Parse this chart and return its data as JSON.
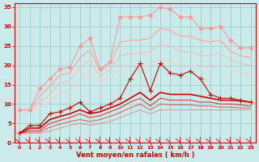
{
  "background_color": "#cbeaea",
  "grid_color": "#a0cccc",
  "xlabel": "Vent moyen/en rafales ( km/h )",
  "xlabel_color": "#cc0000",
  "tick_color": "#cc0000",
  "xlim": [
    -0.5,
    23.5
  ],
  "ylim": [
    0,
    36
  ],
  "xticks": [
    0,
    1,
    2,
    3,
    4,
    5,
    6,
    7,
    8,
    9,
    10,
    11,
    12,
    13,
    14,
    15,
    16,
    17,
    18,
    19,
    20,
    21,
    22,
    23
  ],
  "yticks": [
    0,
    5,
    10,
    15,
    20,
    25,
    30,
    35
  ],
  "lines": [
    {
      "x": [
        0,
        1,
        2,
        3,
        4,
        5,
        6,
        7,
        8,
        9,
        10,
        11,
        12,
        13,
        14,
        15,
        16,
        17,
        18,
        19,
        20,
        21,
        22,
        23
      ],
      "y": [
        8.5,
        8.5,
        14.0,
        16.5,
        19.0,
        19.5,
        25.0,
        27.0,
        19.0,
        21.0,
        32.5,
        32.5,
        32.5,
        33.0,
        35.0,
        34.5,
        32.5,
        32.5,
        29.5,
        29.5,
        30.0,
        26.5,
        24.5,
        24.5
      ],
      "color": "#ff9999",
      "marker": "D",
      "linewidth": 0.8,
      "markersize": 2.5,
      "alpha": 1.0,
      "zorder": 5
    },
    {
      "x": [
        0,
        1,
        2,
        3,
        4,
        5,
        6,
        7,
        8,
        9,
        10,
        11,
        12,
        13,
        14,
        15,
        16,
        17,
        18,
        19,
        20,
        21,
        22,
        23
      ],
      "y": [
        8.5,
        8.5,
        12.0,
        14.5,
        17.5,
        18.0,
        22.0,
        24.0,
        18.5,
        20.5,
        26.0,
        26.5,
        26.5,
        27.0,
        29.5,
        29.0,
        27.5,
        27.5,
        26.5,
        26.0,
        26.5,
        23.5,
        22.5,
        22.0
      ],
      "color": "#ffaaaa",
      "marker": null,
      "linewidth": 1.0,
      "markersize": 0,
      "alpha": 1.0,
      "zorder": 4
    },
    {
      "x": [
        0,
        1,
        2,
        3,
        4,
        5,
        6,
        7,
        8,
        9,
        10,
        11,
        12,
        13,
        14,
        15,
        16,
        17,
        18,
        19,
        20,
        21,
        22,
        23
      ],
      "y": [
        8.5,
        8.5,
        10.5,
        12.5,
        15.5,
        16.0,
        19.5,
        21.5,
        17.0,
        19.0,
        22.5,
        23.0,
        23.0,
        23.5,
        25.5,
        25.0,
        23.5,
        23.5,
        22.5,
        22.5,
        23.0,
        21.5,
        20.5,
        20.0
      ],
      "color": "#ffbbbb",
      "marker": null,
      "linewidth": 0.8,
      "markersize": 0,
      "alpha": 1.0,
      "zorder": 3
    },
    {
      "x": [
        0,
        1,
        2,
        3,
        4,
        5,
        6,
        7,
        8,
        9,
        10,
        11,
        12,
        13,
        14,
        15,
        16,
        17,
        18,
        19,
        20,
        21,
        22,
        23
      ],
      "y": [
        8.5,
        8.5,
        9.0,
        10.5,
        13.0,
        13.5,
        16.0,
        18.0,
        15.5,
        17.0,
        19.0,
        19.5,
        19.5,
        20.0,
        21.5,
        21.0,
        20.0,
        20.0,
        19.5,
        19.5,
        20.0,
        19.0,
        18.0,
        17.5
      ],
      "color": "#ffcccc",
      "marker": null,
      "linewidth": 0.8,
      "markersize": 0,
      "alpha": 1.0,
      "zorder": 2
    },
    {
      "x": [
        0,
        1,
        2,
        3,
        4,
        5,
        6,
        7,
        8,
        9,
        10,
        11,
        12,
        13,
        14,
        15,
        16,
        17,
        18,
        19,
        20,
        21,
        22,
        23
      ],
      "y": [
        2.5,
        4.5,
        4.5,
        7.5,
        8.0,
        9.0,
        10.5,
        8.0,
        9.0,
        10.0,
        11.5,
        16.5,
        20.5,
        13.5,
        20.5,
        18.0,
        17.5,
        18.5,
        16.5,
        12.5,
        11.5,
        11.5,
        11.0,
        10.5
      ],
      "color": "#cc0000",
      "marker": "+",
      "linewidth": 0.8,
      "markersize": 4,
      "alpha": 1.0,
      "zorder": 10
    },
    {
      "x": [
        0,
        1,
        2,
        3,
        4,
        5,
        6,
        7,
        8,
        9,
        10,
        11,
        12,
        13,
        14,
        15,
        16,
        17,
        18,
        19,
        20,
        21,
        22,
        23
      ],
      "y": [
        2.5,
        3.8,
        3.8,
        6.0,
        6.8,
        7.5,
        8.5,
        7.5,
        8.0,
        9.0,
        10.0,
        11.5,
        13.0,
        11.0,
        13.0,
        12.5,
        12.5,
        12.5,
        12.0,
        11.5,
        11.0,
        11.0,
        10.8,
        10.5
      ],
      "color": "#cc0000",
      "marker": null,
      "linewidth": 1.2,
      "markersize": 0,
      "alpha": 1.0,
      "zorder": 9
    },
    {
      "x": [
        0,
        1,
        2,
        3,
        4,
        5,
        6,
        7,
        8,
        9,
        10,
        11,
        12,
        13,
        14,
        15,
        16,
        17,
        18,
        19,
        20,
        21,
        22,
        23
      ],
      "y": [
        2.5,
        3.2,
        3.2,
        5.0,
        5.8,
        6.5,
        7.5,
        6.5,
        7.0,
        8.0,
        9.0,
        10.5,
        11.5,
        9.5,
        11.5,
        11.0,
        11.0,
        11.0,
        10.5,
        10.5,
        10.0,
        10.0,
        9.8,
        9.5
      ],
      "color": "#dd2222",
      "marker": null,
      "linewidth": 0.8,
      "markersize": 0,
      "alpha": 0.85,
      "zorder": 8
    },
    {
      "x": [
        0,
        1,
        2,
        3,
        4,
        5,
        6,
        7,
        8,
        9,
        10,
        11,
        12,
        13,
        14,
        15,
        16,
        17,
        18,
        19,
        20,
        21,
        22,
        23
      ],
      "y": [
        2.5,
        2.8,
        2.8,
        4.0,
        4.8,
        5.5,
        6.0,
        5.5,
        6.0,
        6.8,
        7.8,
        9.0,
        10.0,
        8.5,
        10.0,
        9.8,
        9.8,
        9.8,
        9.5,
        9.5,
        9.2,
        9.2,
        9.0,
        9.0
      ],
      "color": "#dd3333",
      "marker": null,
      "linewidth": 0.8,
      "markersize": 0,
      "alpha": 0.7,
      "zorder": 7
    },
    {
      "x": [
        0,
        1,
        2,
        3,
        4,
        5,
        6,
        7,
        8,
        9,
        10,
        11,
        12,
        13,
        14,
        15,
        16,
        17,
        18,
        19,
        20,
        21,
        22,
        23
      ],
      "y": [
        2.5,
        2.5,
        2.5,
        3.0,
        3.8,
        4.5,
        5.0,
        4.5,
        5.0,
        5.5,
        6.5,
        7.5,
        8.5,
        7.5,
        8.5,
        8.5,
        8.5,
        8.5,
        8.5,
        8.5,
        8.5,
        8.5,
        8.5,
        8.5
      ],
      "color": "#ee5555",
      "marker": null,
      "linewidth": 0.8,
      "markersize": 0,
      "alpha": 0.5,
      "zorder": 6
    }
  ]
}
